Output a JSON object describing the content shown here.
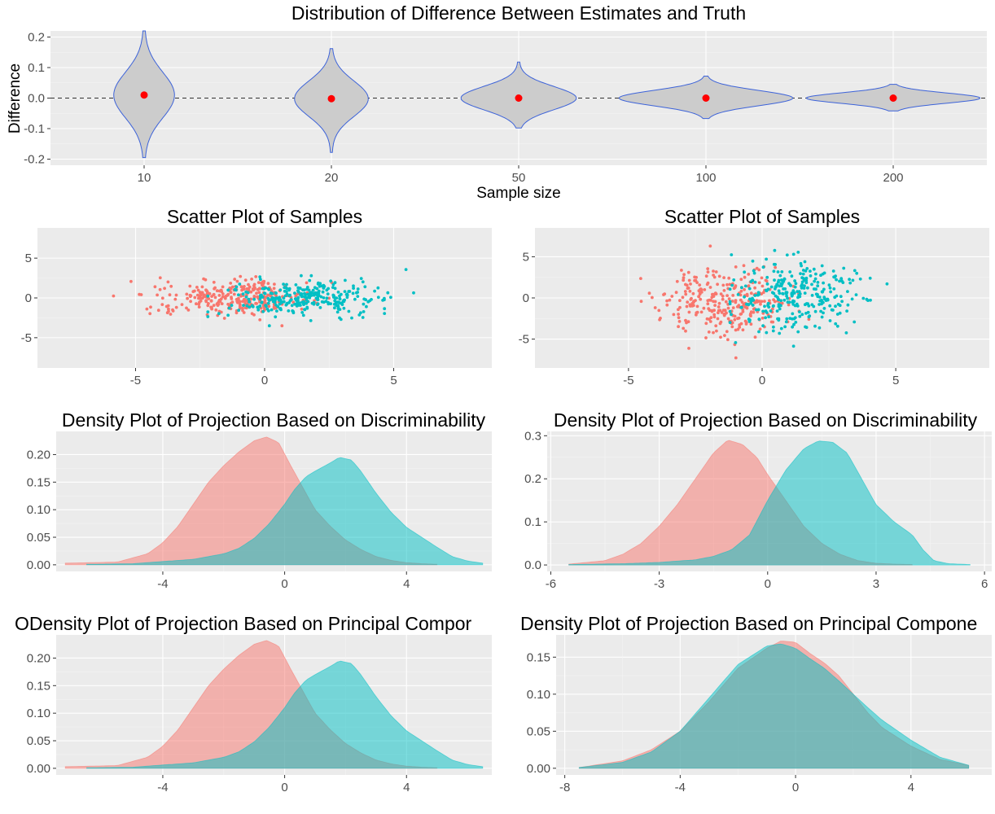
{
  "colors": {
    "panel_bg": "#ebebeb",
    "grid_major": "#ffffff",
    "grid_minor": "#f4f4f4",
    "class_a": "#f8766d",
    "class_b": "#00bfc4",
    "violin_fill": "#cccccc",
    "violin_outline": "#3d63d9",
    "mean_point": "#ff0000",
    "reference_line": "#333333"
  },
  "chart_data": [
    {
      "id": "violin",
      "type": "violin",
      "title": "Distribution of Difference Between Estimates and Truth",
      "xlabel": "Sample size",
      "ylabel": "Difference",
      "categories": [
        "10",
        "20",
        "50",
        "100",
        "200"
      ],
      "ylim": [
        -0.22,
        0.22
      ],
      "yticks": [
        -0.2,
        -0.1,
        0.0,
        0.1,
        0.2
      ],
      "ytick_labels": [
        "-0.2",
        "-0.1",
        "0.0",
        "0.1",
        "0.2"
      ],
      "reference_line_y": 0.0,
      "distributions": [
        {
          "category": "10",
          "mean": 0.01,
          "min": -0.195,
          "max": 0.22,
          "sd": 0.075
        },
        {
          "category": "20",
          "mean": -0.002,
          "min": -0.178,
          "max": 0.162,
          "sd": 0.058
        },
        {
          "category": "50",
          "mean": 0.0,
          "min": -0.098,
          "max": 0.118,
          "sd": 0.038
        },
        {
          "category": "100",
          "mean": 0.0,
          "min": -0.067,
          "max": 0.072,
          "sd": 0.025
        },
        {
          "category": "200",
          "mean": 0.0,
          "min": -0.042,
          "max": 0.045,
          "sd": 0.017
        }
      ],
      "grid": true,
      "legend": "none"
    },
    {
      "id": "scatter-left",
      "type": "scatter",
      "title": "Scatter Plot of Samples",
      "xlim": [
        -8.8,
        8.8
      ],
      "ylim": [
        -8.8,
        8.8
      ],
      "xticks": [
        -5,
        0,
        5
      ],
      "yticks": [
        -5,
        0,
        5
      ],
      "xtick_labels": [
        "-5",
        "0",
        "5"
      ],
      "ytick_labels": [
        "-5",
        "0",
        "5"
      ],
      "points_per_class": 300,
      "series": [
        {
          "color": "#f8766d",
          "center": [
            -1.2,
            0.1
          ],
          "spread": [
            1.5,
            1.1
          ],
          "x_range": [
            -7.2,
            2.6
          ],
          "y_range": [
            -3.5,
            3.5
          ]
        },
        {
          "color": "#00bfc4",
          "center": [
            1.5,
            0.0
          ],
          "spread": [
            1.5,
            1.1
          ],
          "x_range": [
            -2.2,
            6.5
          ],
          "y_range": [
            -3.5,
            4.2
          ]
        }
      ],
      "grid": true,
      "legend": "none"
    },
    {
      "id": "scatter-right",
      "type": "scatter",
      "title": "Scatter Plot of Samples",
      "xlim": [
        -8.5,
        8.5
      ],
      "ylim": [
        -8.5,
        8.5
      ],
      "xticks": [
        -5,
        0,
        5
      ],
      "yticks": [
        -5,
        0,
        5
      ],
      "xtick_labels": [
        "-5",
        "0",
        "5"
      ],
      "ytick_labels": [
        "-5",
        "0",
        "5"
      ],
      "points_per_class": 300,
      "series": [
        {
          "color": "#f8766d",
          "center": [
            -1.3,
            -0.5
          ],
          "spread": [
            1.2,
            2.1
          ],
          "x_range": [
            -5.3,
            2.8
          ],
          "y_range": [
            -7.5,
            6.3
          ]
        },
        {
          "color": "#00bfc4",
          "center": [
            1.3,
            0.3
          ],
          "spread": [
            1.2,
            2.1
          ],
          "x_range": [
            -1.2,
            5.7
          ],
          "y_range": [
            -6.6,
            6.5
          ]
        }
      ],
      "grid": true,
      "legend": "none"
    },
    {
      "id": "density-disc-left",
      "type": "area",
      "title": "Density Plot of Projection Based on Discriminability",
      "xlim": [
        -7.5,
        6.8
      ],
      "ylim": [
        -0.012,
        0.242
      ],
      "xticks": [
        -4,
        0,
        4
      ],
      "xtick_labels": [
        "-4",
        "0",
        "4"
      ],
      "yticks": [
        0.0,
        0.05,
        0.1,
        0.15,
        0.2
      ],
      "ytick_labels": [
        "0.00",
        "0.05",
        "0.10",
        "0.15",
        "0.20"
      ],
      "series": [
        {
          "color": "#f8766d",
          "x": [
            -7.2,
            -5.5,
            -4.5,
            -4.0,
            -3.5,
            -3.0,
            -2.5,
            -2.0,
            -1.5,
            -1.0,
            -0.6,
            -0.2,
            0.2,
            0.6,
            1.0,
            1.5,
            2.0,
            2.5,
            3.0,
            3.5,
            4.0,
            4.5,
            5.0
          ],
          "y": [
            0.003,
            0.005,
            0.02,
            0.04,
            0.07,
            0.11,
            0.15,
            0.18,
            0.205,
            0.225,
            0.232,
            0.222,
            0.18,
            0.14,
            0.1,
            0.07,
            0.045,
            0.028,
            0.015,
            0.008,
            0.004,
            0.002,
            0.001
          ]
        },
        {
          "color": "#00bfc4",
          "x": [
            -6.5,
            -5.0,
            -4.0,
            -3.0,
            -2.0,
            -1.5,
            -1.0,
            -0.5,
            0.0,
            0.3,
            0.7,
            1.0,
            1.5,
            1.8,
            2.2,
            2.5,
            3.0,
            3.5,
            4.0,
            4.5,
            5.0,
            5.5,
            6.0,
            6.5
          ],
          "y": [
            0.001,
            0.002,
            0.006,
            0.01,
            0.02,
            0.03,
            0.048,
            0.075,
            0.11,
            0.135,
            0.16,
            0.17,
            0.185,
            0.195,
            0.19,
            0.17,
            0.13,
            0.095,
            0.068,
            0.05,
            0.032,
            0.015,
            0.007,
            0.003
          ]
        }
      ],
      "grid": true,
      "legend": "none"
    },
    {
      "id": "density-disc-right",
      "type": "area",
      "title": "Density Plot of Projection Based on Discriminability",
      "xlim": [
        -6.1,
        6.2
      ],
      "ylim": [
        -0.015,
        0.31
      ],
      "xticks": [
        -6,
        -3,
        0,
        3,
        6
      ],
      "xtick_labels": [
        "-6",
        "-3",
        "0",
        "3",
        "6"
      ],
      "yticks": [
        0.0,
        0.1,
        0.2,
        0.3
      ],
      "ytick_labels": [
        "0.0",
        "0.1",
        "0.2",
        "0.3"
      ],
      "series": [
        {
          "color": "#f8766d",
          "x": [
            -5.5,
            -4.5,
            -4.0,
            -3.5,
            -3.0,
            -2.5,
            -2.0,
            -1.5,
            -1.1,
            -0.7,
            -0.3,
            0.0,
            0.5,
            1.0,
            1.5,
            2.0,
            2.5,
            3.0,
            3.5,
            4.0
          ],
          "y": [
            0.002,
            0.01,
            0.025,
            0.05,
            0.09,
            0.14,
            0.2,
            0.26,
            0.29,
            0.28,
            0.25,
            0.21,
            0.15,
            0.09,
            0.05,
            0.025,
            0.01,
            0.004,
            0.002,
            0.001
          ]
        },
        {
          "color": "#00bfc4",
          "x": [
            -5.5,
            -4.0,
            -3.0,
            -2.0,
            -1.5,
            -1.0,
            -0.5,
            0.0,
            0.5,
            1.0,
            1.4,
            1.8,
            2.2,
            2.6,
            3.0,
            3.5,
            4.0,
            4.3,
            4.6,
            5.0,
            5.6
          ],
          "y": [
            0.001,
            0.003,
            0.006,
            0.012,
            0.02,
            0.035,
            0.07,
            0.15,
            0.22,
            0.27,
            0.288,
            0.285,
            0.26,
            0.2,
            0.14,
            0.1,
            0.07,
            0.035,
            0.01,
            0.003,
            0.001
          ]
        }
      ],
      "grid": true,
      "legend": "none"
    },
    {
      "id": "density-pc-left",
      "type": "area",
      "title": "ODensity Plot of Projection Based on Principal Compor",
      "xlim": [
        -7.5,
        6.8
      ],
      "ylim": [
        -0.012,
        0.242
      ],
      "xticks": [
        -4,
        0,
        4
      ],
      "xtick_labels": [
        "-4",
        "0",
        "4"
      ],
      "yticks": [
        0.0,
        0.05,
        0.1,
        0.15,
        0.2
      ],
      "ytick_labels": [
        "0.00",
        "0.05",
        "0.10",
        "0.15",
        "0.20"
      ],
      "series": [
        {
          "color": "#f8766d",
          "x": [
            -7.2,
            -5.5,
            -4.5,
            -4.0,
            -3.5,
            -3.0,
            -2.5,
            -2.0,
            -1.5,
            -1.0,
            -0.6,
            -0.2,
            0.2,
            0.6,
            1.0,
            1.5,
            2.0,
            2.5,
            3.0,
            3.5,
            4.0,
            4.5,
            5.0
          ],
          "y": [
            0.003,
            0.005,
            0.02,
            0.04,
            0.07,
            0.11,
            0.15,
            0.18,
            0.205,
            0.225,
            0.232,
            0.222,
            0.18,
            0.14,
            0.1,
            0.07,
            0.045,
            0.028,
            0.015,
            0.008,
            0.004,
            0.002,
            0.001
          ]
        },
        {
          "color": "#00bfc4",
          "x": [
            -6.5,
            -5.0,
            -4.0,
            -3.0,
            -2.0,
            -1.5,
            -1.0,
            -0.5,
            0.0,
            0.3,
            0.7,
            1.0,
            1.5,
            1.8,
            2.2,
            2.5,
            3.0,
            3.5,
            4.0,
            4.5,
            5.0,
            5.5,
            6.0,
            6.5
          ],
          "y": [
            0.001,
            0.002,
            0.006,
            0.01,
            0.02,
            0.03,
            0.048,
            0.075,
            0.11,
            0.135,
            0.16,
            0.17,
            0.185,
            0.195,
            0.19,
            0.17,
            0.13,
            0.095,
            0.068,
            0.05,
            0.032,
            0.015,
            0.007,
            0.003
          ]
        }
      ],
      "grid": true,
      "legend": "none"
    },
    {
      "id": "density-pc-right",
      "type": "area",
      "title": "Density Plot of Projection Based on Principal Compone",
      "xlim": [
        -8.3,
        6.8
      ],
      "ylim": [
        -0.009,
        0.18
      ],
      "xticks": [
        -8,
        -4,
        0,
        4
      ],
      "xtick_labels": [
        "-8",
        "-4",
        "0",
        "4"
      ],
      "yticks": [
        0.0,
        0.05,
        0.1,
        0.15
      ],
      "ytick_labels": [
        "0.00",
        "0.05",
        "0.10",
        "0.15"
      ],
      "series": [
        {
          "color": "#f8766d",
          "x": [
            -7.5,
            -6.0,
            -5.0,
            -4.0,
            -3.0,
            -2.0,
            -1.0,
            -0.5,
            0.0,
            0.5,
            1.0,
            1.5,
            2.0,
            2.5,
            3.0,
            4.0,
            5.0,
            6.0
          ],
          "y": [
            0.001,
            0.01,
            0.025,
            0.05,
            0.09,
            0.135,
            0.162,
            0.172,
            0.17,
            0.155,
            0.142,
            0.125,
            0.1,
            0.075,
            0.055,
            0.03,
            0.012,
            0.004
          ]
        },
        {
          "color": "#00bfc4",
          "x": [
            -7.5,
            -6.0,
            -5.0,
            -4.0,
            -3.0,
            -2.0,
            -1.0,
            -0.5,
            0.0,
            0.5,
            1.0,
            1.5,
            2.0,
            2.5,
            3.0,
            4.0,
            5.0,
            6.0
          ],
          "y": [
            0.001,
            0.008,
            0.022,
            0.05,
            0.095,
            0.14,
            0.165,
            0.168,
            0.162,
            0.148,
            0.135,
            0.118,
            0.1,
            0.082,
            0.065,
            0.038,
            0.015,
            0.004
          ]
        }
      ],
      "grid": true,
      "legend": "none"
    }
  ]
}
